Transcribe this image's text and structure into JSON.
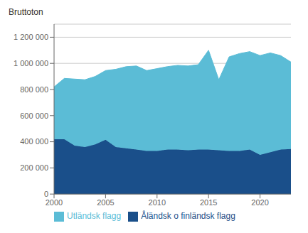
{
  "chart_data": {
    "type": "area",
    "stacked": true,
    "y_label": "Bruttoton",
    "x": [
      2000,
      2001,
      2002,
      2003,
      2004,
      2005,
      2006,
      2007,
      2008,
      2009,
      2010,
      2011,
      2012,
      2013,
      2014,
      2015,
      2016,
      2017,
      2018,
      2019,
      2020,
      2021,
      2022,
      2023
    ],
    "series": [
      {
        "name": "Åländsk o finländsk flagg",
        "color": "#1a4f8a",
        "values": [
          420000,
          420000,
          370000,
          360000,
          380000,
          415000,
          360000,
          350000,
          340000,
          330000,
          330000,
          340000,
          340000,
          335000,
          340000,
          340000,
          335000,
          330000,
          330000,
          340000,
          300000,
          320000,
          340000,
          345000
        ]
      },
      {
        "name": "Utländsk flagg",
        "color": "#5bbcd6",
        "values": [
          400000,
          465000,
          510000,
          515000,
          520000,
          530000,
          595000,
          625000,
          640000,
          615000,
          630000,
          635000,
          645000,
          645000,
          650000,
          760000,
          540000,
          720000,
          745000,
          750000,
          760000,
          760000,
          720000,
          665000
        ]
      }
    ],
    "xlim": [
      2000,
      2023
    ],
    "xticks": [
      2000,
      2005,
      2010,
      2015,
      2020
    ],
    "ylim": [
      0,
      1300000
    ],
    "yticks": [
      0,
      {
        "value": 200000,
        "label": "200 000"
      },
      {
        "value": 400000,
        "label": "400 000"
      },
      {
        "value": 600000,
        "label": "600 000"
      },
      {
        "value": 800000,
        "label": "800 000"
      },
      {
        "value": 1000000,
        "label": "1 000 000"
      },
      {
        "value": 1200000,
        "label": "1 200 000"
      }
    ],
    "grid": true,
    "legend": "bottom"
  }
}
